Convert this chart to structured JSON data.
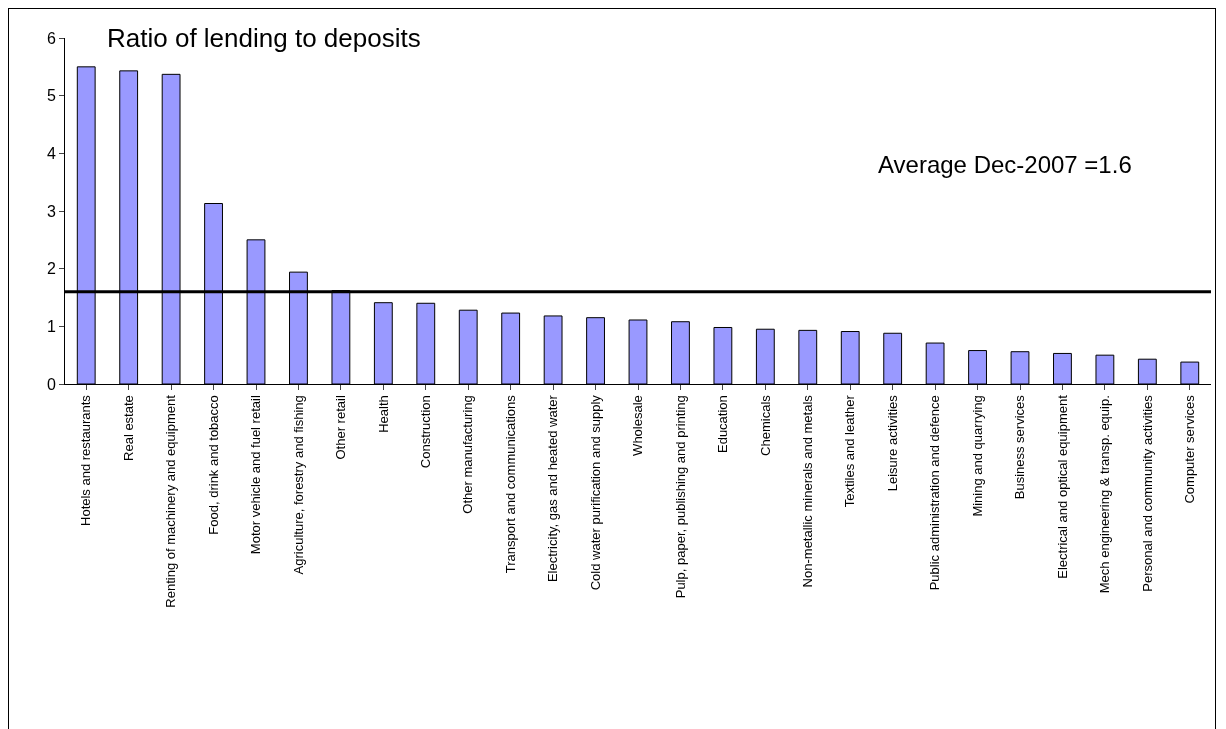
{
  "chart_data": {
    "type": "bar",
    "title": "Ratio of lending to deposits",
    "categories": [
      "Hotels and restaurants",
      "Real estate",
      "Renting of machinery and equipment",
      "Food, drink and tobacco",
      "Motor vehicle and fuel retail",
      "Agriculture, forestry and fishing",
      "Other retail",
      "Health",
      "Construction",
      "Other manufacturing",
      "Transport and communications",
      "Electricity, gas and heated water",
      "Cold water purification and supply",
      "Wholesale",
      "Pulp, paper, publishing and printing",
      "Education",
      "Chemicals",
      "Non-metallic minerals and metals",
      "Textiles and leather",
      "Leisure activities",
      "Public administration and defence",
      "Mining and quarrying",
      "Business services",
      "Electrical and optical equipment",
      "Mech engineering & transp. equip.",
      "Personal and community activities",
      "Computer services"
    ],
    "values": [
      5.5,
      5.43,
      5.37,
      3.13,
      2.5,
      1.94,
      1.62,
      1.41,
      1.4,
      1.28,
      1.23,
      1.18,
      1.15,
      1.11,
      1.08,
      0.98,
      0.95,
      0.93,
      0.91,
      0.88,
      0.71,
      0.58,
      0.56,
      0.53,
      0.5,
      0.43,
      0.38
    ],
    "color": "#9999ff",
    "ylim": [
      0,
      6
    ],
    "yticks": [
      0,
      1,
      2,
      3,
      4,
      5,
      6
    ],
    "grid": false,
    "ref_lines": [
      {
        "axis": "y",
        "value": 1.6,
        "label": "Average Dec-2007 =1.6",
        "color": "#000000"
      }
    ]
  }
}
